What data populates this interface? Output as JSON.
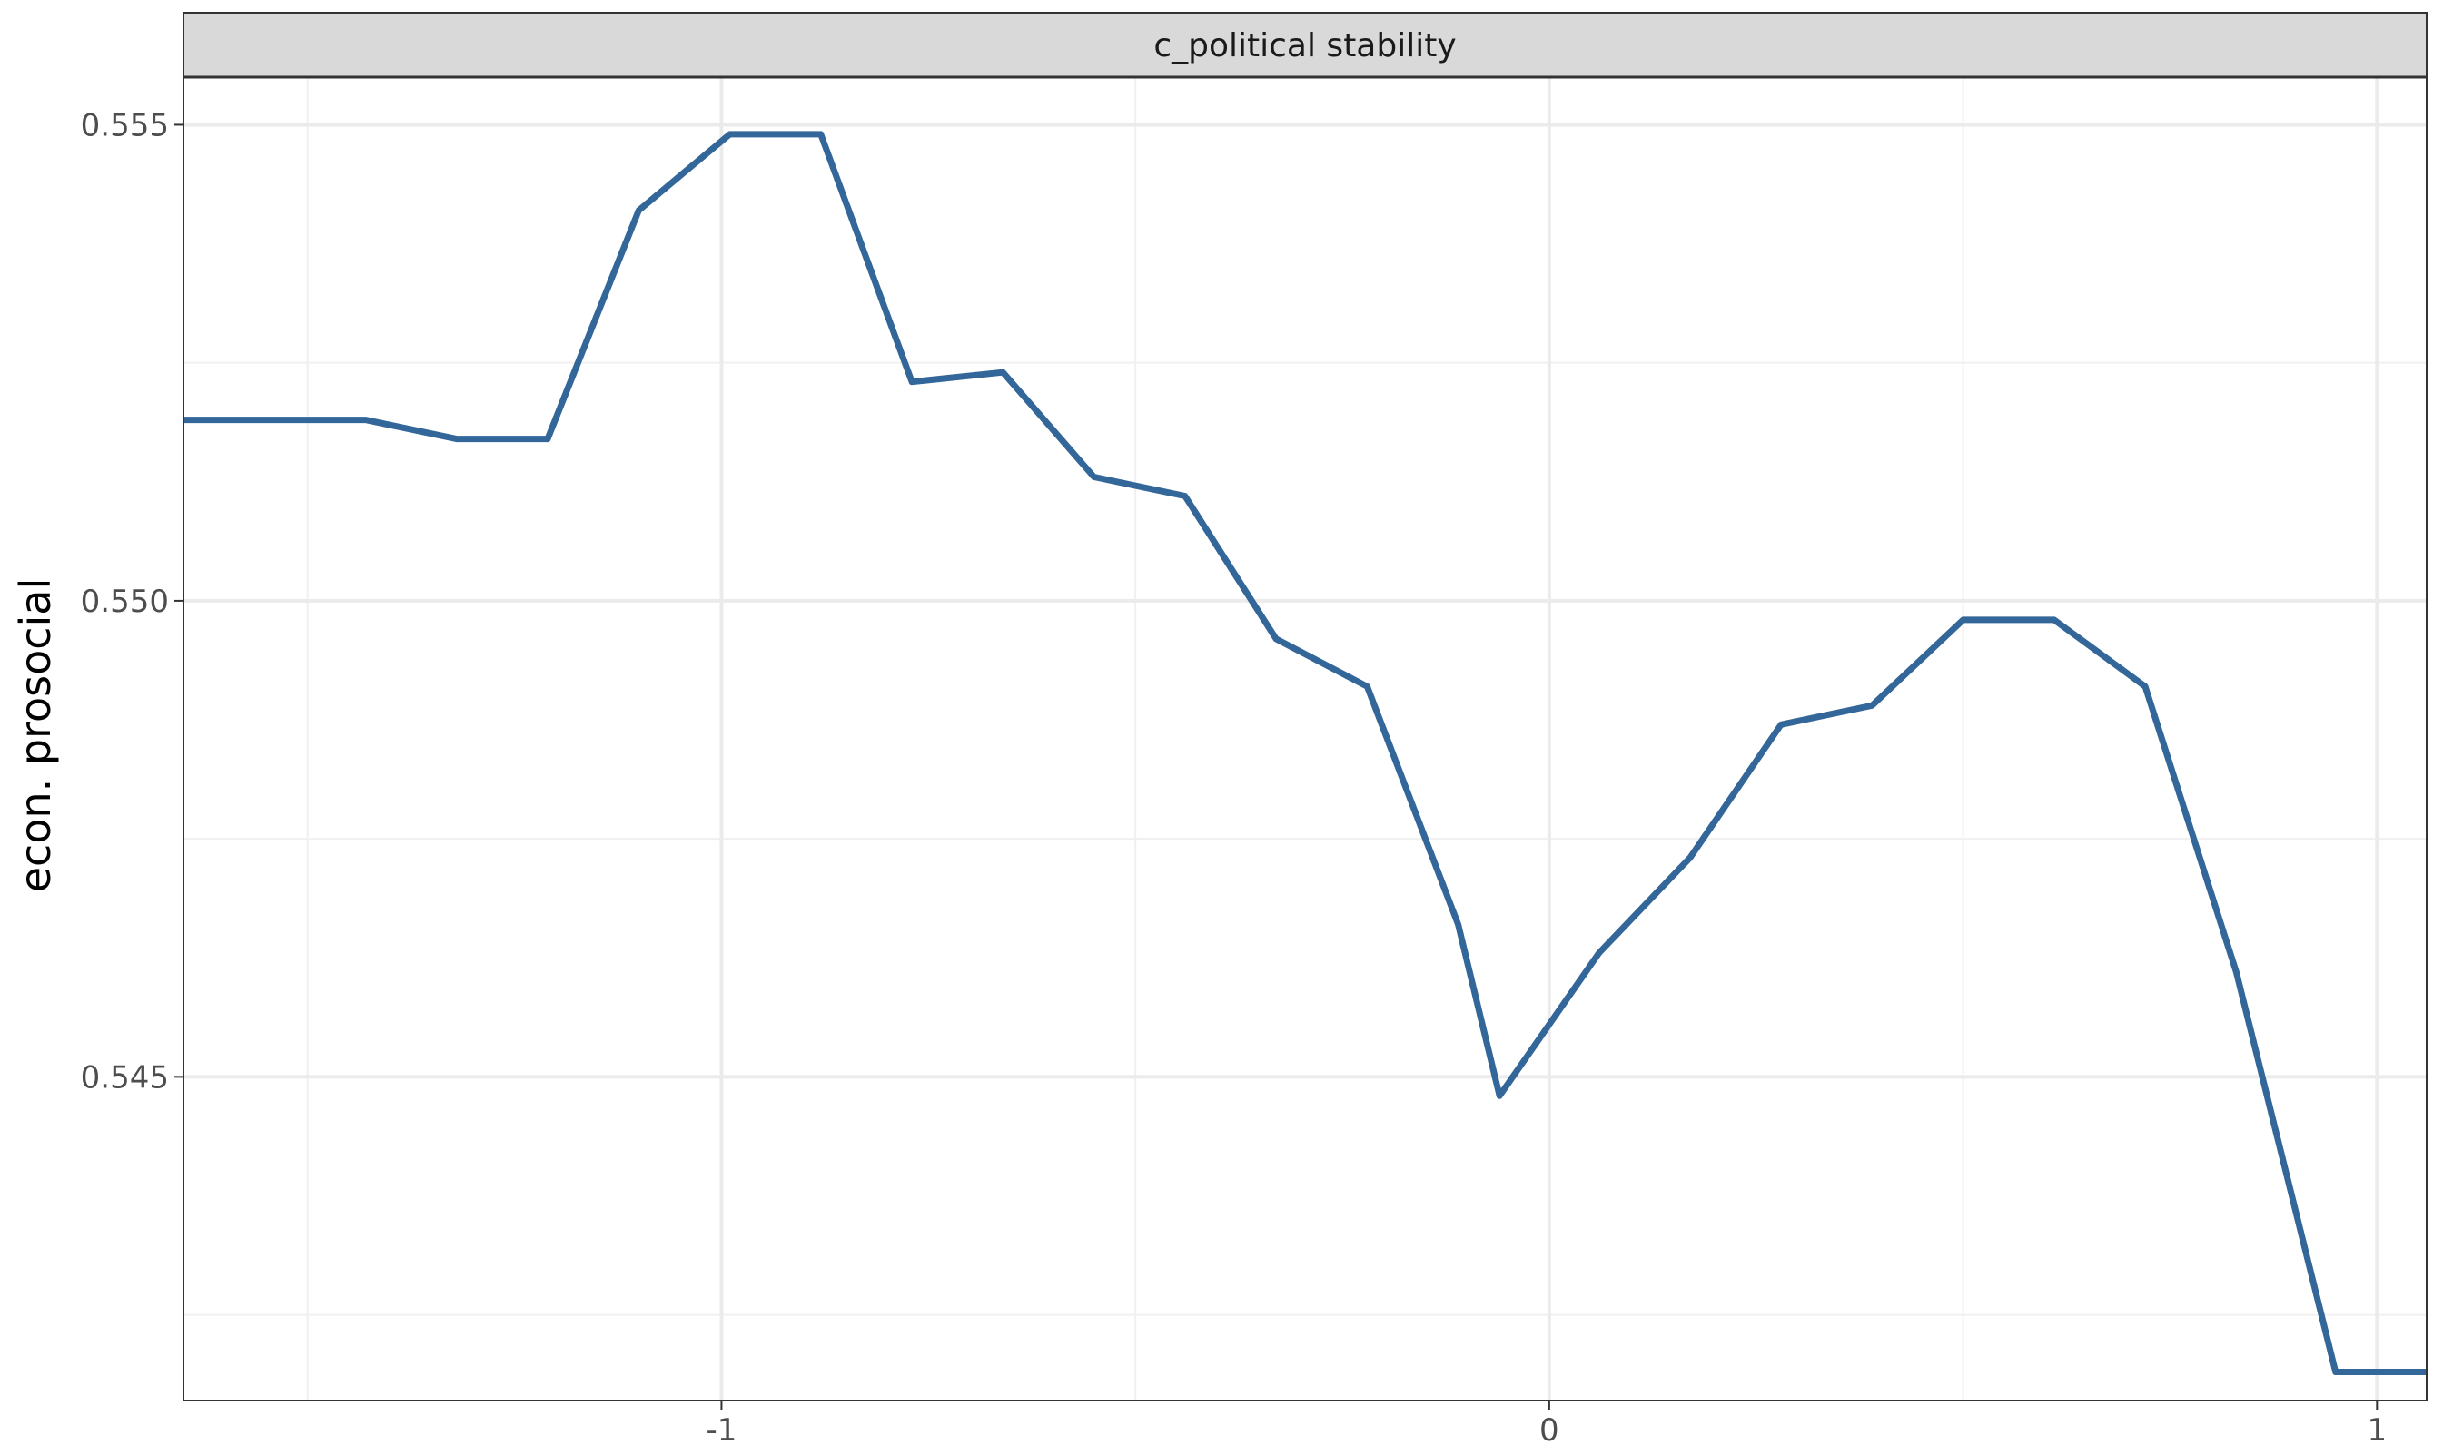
{
  "chart_data": {
    "type": "line",
    "facet_label": "c_political stability",
    "xlabel": "",
    "ylabel": "econ. prosocial",
    "xlim": [
      -1.65,
      1.06
    ],
    "ylim": [
      0.5416,
      0.5555
    ],
    "xticks": [
      {
        "value": -1,
        "label": "-1"
      },
      {
        "value": 0,
        "label": "0"
      },
      {
        "value": 1,
        "label": "1"
      }
    ],
    "yticks": [
      {
        "value": 0.545,
        "label": "0.545"
      },
      {
        "value": 0.55,
        "label": "0.550"
      },
      {
        "value": 0.555,
        "label": "0.555"
      }
    ],
    "x_minor_gridlines": [
      -1.5,
      -0.5,
      0.5
    ],
    "y_minor_gridlines": [
      0.5425,
      0.5475,
      0.5525
    ],
    "grid": true,
    "series": [
      {
        "color": "#336699",
        "x": [
          -1.65,
          -1.43,
          -1.32,
          -1.21,
          -1.1,
          -0.99,
          -0.88,
          -0.77,
          -0.66,
          -0.55,
          -0.44,
          -0.33,
          -0.22,
          -0.11,
          -0.06,
          0.06,
          0.17,
          0.28,
          0.39,
          0.5,
          0.61,
          0.72,
          0.83,
          0.95,
          1.06
        ],
        "y": [
          0.5519,
          0.5519,
          0.5517,
          0.5517,
          0.5541,
          0.5549,
          0.5549,
          0.5523,
          0.5524,
          0.5513,
          0.5511,
          0.5496,
          0.5491,
          0.5466,
          0.5448,
          0.5463,
          0.5473,
          0.5487,
          0.5489,
          0.5498,
          0.5498,
          0.5491,
          0.5461,
          0.5419,
          0.5419
        ]
      }
    ]
  }
}
